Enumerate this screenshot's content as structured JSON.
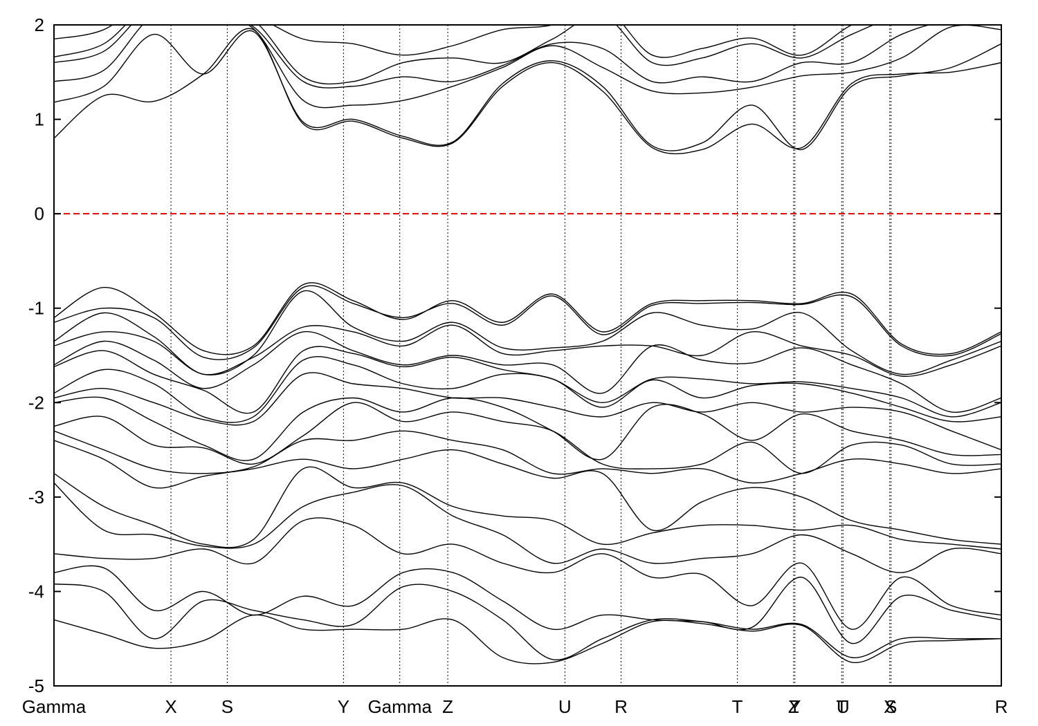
{
  "chart_data": {
    "type": "line",
    "title": "",
    "xlabel": "",
    "ylabel": "",
    "ylim": [
      -5,
      2
    ],
    "yticks": [
      "2",
      "1",
      "0",
      "-1",
      "-2",
      "-3",
      "-4",
      "-5"
    ],
    "ytick_values": [
      2,
      1,
      0,
      -1,
      -2,
      -3,
      -4,
      -5
    ],
    "xlim": [
      0,
      1
    ],
    "high_symmetry_points": [
      {
        "label": "Gamma",
        "k": 0.0
      },
      {
        "label": "X",
        "k": 0.1235
      },
      {
        "label": "S",
        "k": 0.1829
      },
      {
        "label": "Y",
        "k": 0.3056
      },
      {
        "label": "Gamma",
        "k": 0.365
      },
      {
        "label": "Z",
        "k": 0.4157
      },
      {
        "label": "U",
        "k": 0.5393
      },
      {
        "label": "R",
        "k": 0.5986
      },
      {
        "label": "T",
        "k": 0.7214
      },
      {
        "label": "Z",
        "k": 0.7807
      },
      {
        "label": "Y",
        "k": 0.7821
      },
      {
        "label": "T",
        "k": 0.8315
      },
      {
        "label": "U",
        "k": 0.8329
      },
      {
        "label": "X",
        "k": 0.8822
      },
      {
        "label": "S",
        "k": 0.8836
      },
      {
        "label": "R",
        "k": 1.0
      }
    ],
    "fermi_level": 0,
    "colors": {
      "bands": "#000000",
      "fermi": "#e00000",
      "frame": "#000000"
    },
    "grid": false,
    "series": [
      {
        "y": [
          0.8,
          1.25,
          1.19,
          1.48,
          1.95,
          0.95,
          0.98,
          0.8,
          0.75,
          1.35,
          1.6,
          1.3,
          0.7,
          0.68,
          0.95,
          0.7,
          1.38,
          1.48,
          1.5,
          1.6
        ]
      },
      {
        "y": [
          1.18,
          1.35,
          1.9,
          1.48,
          1.93,
          0.97,
          1.0,
          0.82,
          0.76,
          1.38,
          1.62,
          1.35,
          0.72,
          0.75,
          1.15,
          0.68,
          1.35,
          1.46,
          1.55,
          1.8
        ]
      },
      {
        "y": [
          1.4,
          1.52,
          2.1,
          2.1,
          1.96,
          1.2,
          1.15,
          1.2,
          1.35,
          1.55,
          1.78,
          1.55,
          1.3,
          1.28,
          1.34,
          1.46,
          1.5,
          1.65,
          1.98,
          1.95
        ]
      },
      {
        "y": [
          1.6,
          1.72,
          2.2,
          2.15,
          1.98,
          1.4,
          1.35,
          1.45,
          1.4,
          1.57,
          1.8,
          1.75,
          1.4,
          1.45,
          1.4,
          1.6,
          1.6,
          1.9,
          2.05,
          2.05
        ]
      },
      {
        "y": [
          1.66,
          1.8,
          2.25,
          2.2,
          2.05,
          1.45,
          1.4,
          1.6,
          1.65,
          1.6,
          1.85,
          2.1,
          1.6,
          1.65,
          1.8,
          1.65,
          1.9,
          2.1,
          2.1,
          2.1
        ]
      },
      {
        "y": [
          1.85,
          1.95,
          2.3,
          2.25,
          2.1,
          1.85,
          1.8,
          1.68,
          1.78,
          1.95,
          2.0,
          2.2,
          1.68,
          1.75,
          1.86,
          1.68,
          2.0,
          2.2,
          2.15,
          2.15
        ]
      },
      {
        "y": [
          -1.1,
          -0.78,
          -1.05,
          -1.45,
          -1.4,
          -0.75,
          -0.92,
          -1.12,
          -0.92,
          -1.15,
          -0.85,
          -1.25,
          -0.95,
          -0.92,
          -0.92,
          -0.95,
          -0.85,
          -1.38,
          -1.48,
          -1.25
        ]
      },
      {
        "y": [
          -1.15,
          -1.0,
          -1.1,
          -1.52,
          -1.42,
          -0.78,
          -0.95,
          -1.1,
          -0.95,
          -1.18,
          -0.87,
          -1.28,
          -0.97,
          -0.95,
          -0.94,
          -0.96,
          -0.88,
          -1.4,
          -1.5,
          -1.27
        ]
      },
      {
        "y": [
          -1.35,
          -1.05,
          -1.3,
          -1.7,
          -1.5,
          -0.82,
          -1.2,
          -1.35,
          -1.15,
          -1.42,
          -1.42,
          -1.35,
          -1.05,
          -1.18,
          -1.22,
          -1.05,
          -1.45,
          -1.7,
          -1.55,
          -1.35
        ]
      },
      {
        "y": [
          -1.4,
          -1.25,
          -1.35,
          -1.7,
          -1.52,
          -1.2,
          -1.25,
          -1.4,
          -1.18,
          -1.48,
          -1.45,
          -1.4,
          -1.4,
          -1.5,
          -1.25,
          -1.4,
          -1.5,
          -1.72,
          -1.6,
          -1.4
        ]
      },
      {
        "y": [
          -1.6,
          -1.35,
          -1.55,
          -1.85,
          -1.6,
          -1.25,
          -1.45,
          -1.6,
          -1.5,
          -1.6,
          -1.6,
          -1.9,
          -1.4,
          -1.55,
          -1.58,
          -1.42,
          -1.6,
          -1.8,
          -2.1,
          -1.95
        ]
      },
      {
        "y": [
          -1.62,
          -1.45,
          -1.7,
          -1.87,
          -2.1,
          -1.45,
          -1.48,
          -1.62,
          -1.52,
          -1.65,
          -1.75,
          -2.0,
          -1.75,
          -1.75,
          -1.8,
          -1.78,
          -1.85,
          -1.95,
          -2.15,
          -2.0
        ]
      },
      {
        "y": [
          -1.9,
          -1.65,
          -1.8,
          -2.15,
          -2.15,
          -1.55,
          -1.6,
          -1.8,
          -1.85,
          -1.7,
          -1.75,
          -2.05,
          -1.76,
          -1.95,
          -1.82,
          -1.8,
          -1.9,
          -2.05,
          -2.2,
          -2.15
        ]
      },
      {
        "y": [
          -1.95,
          -1.85,
          -2.0,
          -2.18,
          -2.2,
          -1.7,
          -1.8,
          -1.85,
          -1.95,
          -1.95,
          -2.05,
          -2.15,
          -2.0,
          -2.1,
          -2.0,
          -2.1,
          -2.05,
          -2.1,
          -2.3,
          -2.5
        ]
      },
      {
        "y": [
          -2.0,
          -1.95,
          -2.2,
          -2.45,
          -2.6,
          -2.1,
          -1.95,
          -2.1,
          -1.95,
          -2.05,
          -2.3,
          -2.6,
          -2.05,
          -2.12,
          -2.4,
          -2.12,
          -2.3,
          -2.4,
          -2.55,
          -2.55
        ]
      },
      {
        "y": [
          -2.25,
          -2.15,
          -2.45,
          -2.48,
          -2.65,
          -2.35,
          -2.0,
          -2.2,
          -2.1,
          -2.2,
          -2.3,
          -2.65,
          -2.7,
          -2.65,
          -2.42,
          -2.75,
          -2.45,
          -2.45,
          -2.65,
          -2.65
        ]
      },
      {
        "y": [
          -2.3,
          -2.5,
          -2.7,
          -2.75,
          -2.68,
          -2.4,
          -2.4,
          -2.3,
          -2.4,
          -2.5,
          -2.75,
          -2.7,
          -2.75,
          -2.7,
          -2.85,
          -2.75,
          -2.6,
          -2.65,
          -2.75,
          -2.7
        ]
      },
      {
        "y": [
          -2.4,
          -2.6,
          -2.9,
          -2.78,
          -2.7,
          -2.6,
          -2.7,
          -2.6,
          -2.5,
          -2.65,
          -2.8,
          -2.75,
          -3.35,
          -3.05,
          -2.9,
          -3.0,
          -3.25,
          -3.35,
          -3.45,
          -3.5
        ]
      },
      {
        "y": [
          -2.75,
          -3.1,
          -3.3,
          -3.5,
          -3.45,
          -2.7,
          -2.9,
          -2.85,
          -3.1,
          -3.2,
          -3.25,
          -3.5,
          -3.38,
          -3.3,
          -3.3,
          -3.35,
          -3.3,
          -3.45,
          -3.5,
          -3.55
        ]
      },
      {
        "y": [
          -2.85,
          -3.35,
          -3.4,
          -3.52,
          -3.5,
          -3.1,
          -2.95,
          -2.88,
          -3.2,
          -3.4,
          -3.7,
          -3.55,
          -3.7,
          -3.65,
          -3.6,
          -3.4,
          -3.6,
          -3.8,
          -3.55,
          -3.6
        ]
      },
      {
        "y": [
          -3.6,
          -3.65,
          -3.65,
          -3.55,
          -3.7,
          -3.25,
          -3.3,
          -3.6,
          -3.5,
          -3.7,
          -3.8,
          -3.6,
          -3.85,
          -3.82,
          -4.15,
          -3.7,
          -4.4,
          -3.85,
          -4.15,
          -4.25
        ]
      },
      {
        "y": [
          -3.8,
          -3.75,
          -4.2,
          -4.0,
          -4.25,
          -4.05,
          -4.15,
          -3.8,
          -3.8,
          -4.1,
          -4.4,
          -4.25,
          -4.3,
          -4.32,
          -4.38,
          -3.85,
          -4.55,
          -4.05,
          -4.2,
          -4.3
        ]
      },
      {
        "y": [
          -3.92,
          -4.0,
          -4.5,
          -4.1,
          -4.2,
          -4.3,
          -4.35,
          -3.95,
          -4.0,
          -4.3,
          -4.72,
          -4.5,
          -4.3,
          -4.32,
          -4.4,
          -4.35,
          -4.7,
          -4.5,
          -4.5,
          -4.5
        ]
      },
      {
        "y": [
          -4.3,
          -4.45,
          -4.6,
          -4.52,
          -4.25,
          -4.4,
          -4.4,
          -4.4,
          -4.3,
          -4.7,
          -4.75,
          -4.55,
          -4.32,
          -4.34,
          -4.42,
          -4.36,
          -4.75,
          -4.55,
          -4.52,
          -4.5
        ]
      }
    ]
  }
}
